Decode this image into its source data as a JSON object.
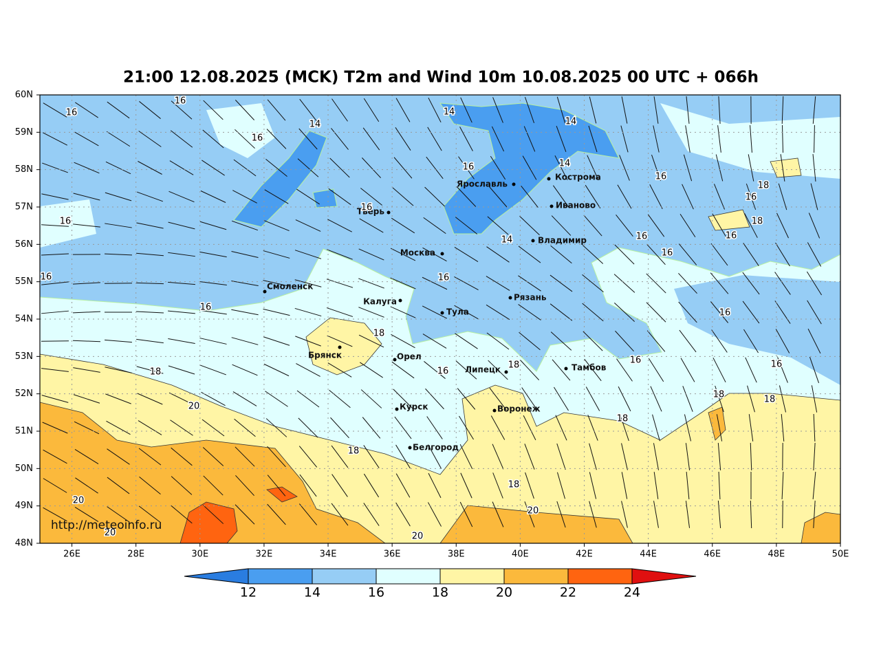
{
  "title": "21:00 12.08.2025 (MCK) T2m and Wind 10m 10.08.2025 00 UTC + 066h",
  "lon_lim": [
    25,
    50
  ],
  "lat_lim": [
    48,
    60
  ],
  "lon_ticks": [
    {
      "value": 26,
      "label": "26E"
    },
    {
      "value": 28,
      "label": "28E"
    },
    {
      "value": 30,
      "label": "30E"
    },
    {
      "value": 32,
      "label": "32E"
    },
    {
      "value": 34,
      "label": "34E"
    },
    {
      "value": 36,
      "label": "36E"
    },
    {
      "value": 38,
      "label": "38E"
    },
    {
      "value": 40,
      "label": "40E"
    },
    {
      "value": 42,
      "label": "42E"
    },
    {
      "value": 44,
      "label": "44E"
    },
    {
      "value": 46,
      "label": "46E"
    },
    {
      "value": 48,
      "label": "48E"
    },
    {
      "value": 50,
      "label": "50E"
    }
  ],
  "lat_ticks": [
    {
      "value": 48,
      "label": "48N"
    },
    {
      "value": 49,
      "label": "49N"
    },
    {
      "value": 50,
      "label": "50N"
    },
    {
      "value": 51,
      "label": "51N"
    },
    {
      "value": 52,
      "label": "52N"
    },
    {
      "value": 53,
      "label": "53N"
    },
    {
      "value": 54,
      "label": "54N"
    },
    {
      "value": 55,
      "label": "55N"
    },
    {
      "value": 56,
      "label": "56N"
    },
    {
      "value": 57,
      "label": "57N"
    },
    {
      "value": 58,
      "label": "58N"
    },
    {
      "value": 59,
      "label": "59N"
    },
    {
      "value": 60,
      "label": "60N"
    }
  ],
  "cities": [
    "Ярославль",
    "Кострома",
    "Тверь",
    "Иваново",
    "Владимир",
    "Москва",
    "Смоленск",
    "Калуга",
    "Рязань",
    "Тула",
    "Брянск",
    "Орел",
    "Липецк",
    "Тамбов",
    "Курск",
    "Воронеж",
    "Белгород"
  ],
  "contour_labels": [
    16,
    16,
    14,
    16,
    14,
    14,
    14,
    16,
    16,
    18,
    16,
    18,
    16,
    16,
    14,
    16,
    16,
    16,
    16,
    16,
    16,
    16,
    18,
    16,
    16,
    18,
    16,
    18,
    18,
    18,
    20,
    18,
    18,
    18,
    20,
    20,
    20,
    20
  ],
  "colorbar": {
    "levels": [
      12,
      14,
      16,
      18,
      20,
      22,
      24
    ],
    "colors": [
      "#2a7de0",
      "#4a9ef0",
      "#96cdf5",
      "#e0ffff",
      "#fff5a5",
      "#fbb93c",
      "#ff6410",
      "#e01010"
    ]
  },
  "credit": "http://meteoinfo.ru"
}
